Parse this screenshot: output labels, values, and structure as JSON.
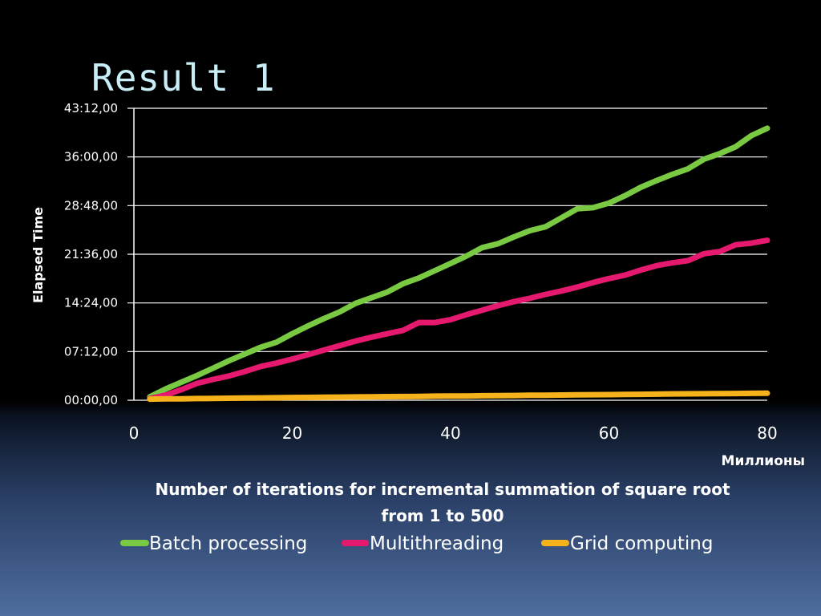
{
  "slide": {
    "title": "Result 1"
  },
  "chart_data": {
    "type": "line",
    "title": "",
    "ylabel": "Elapsed Time",
    "x_unit_label": "Миллионы",
    "xlabel_lines": [
      "Number of iterations for incremental summation of square root",
      "from 1 to 500"
    ],
    "xlim": [
      0,
      80
    ],
    "x_ticks": [
      0,
      20,
      40,
      60,
      80
    ],
    "x_tick_labels": [
      "0",
      "20",
      "40",
      "60",
      "80"
    ],
    "ylim_seconds": [
      0,
      2592
    ],
    "y_ticks_seconds": [
      0,
      432,
      864,
      1296,
      1728,
      2160,
      2592
    ],
    "y_tick_labels": [
      "00:00,00",
      "07:12,00",
      "14:24,00",
      "21:36,00",
      "28:48,00",
      "36:00,00",
      "43:12,00"
    ],
    "grid": true,
    "legend_position": "bottom",
    "x": [
      2,
      4,
      6,
      8,
      10,
      12,
      14,
      16,
      18,
      20,
      22,
      24,
      26,
      28,
      30,
      32,
      34,
      36,
      38,
      40,
      42,
      44,
      46,
      48,
      50,
      52,
      54,
      56,
      58,
      60,
      62,
      64,
      66,
      68,
      70,
      72,
      74,
      76,
      78,
      80
    ],
    "series": [
      {
        "name": "Batch processing",
        "color": "#7ac943",
        "values": [
          30,
          100,
          160,
          220,
          285,
          350,
          410,
          470,
          515,
          590,
          660,
          725,
          785,
          860,
          910,
          960,
          1035,
          1085,
          1150,
          1215,
          1280,
          1355,
          1390,
          1450,
          1505,
          1540,
          1620,
          1700,
          1710,
          1750,
          1815,
          1890,
          1950,
          2005,
          2055,
          2140,
          2190,
          2250,
          2350,
          2415
        ]
      },
      {
        "name": "Multithreading",
        "color": "#e5196e",
        "values": [
          15,
          45,
          95,
          150,
          185,
          215,
          255,
          300,
          330,
          365,
          405,
          445,
          485,
          525,
          560,
          590,
          620,
          690,
          690,
          715,
          760,
          800,
          840,
          875,
          905,
          940,
          970,
          1005,
          1045,
          1080,
          1110,
          1155,
          1195,
          1220,
          1240,
          1300,
          1320,
          1380,
          1395,
          1420
        ]
      },
      {
        "name": "Grid computing",
        "color": "#f5b21b",
        "values": [
          10,
          12,
          13,
          15,
          16,
          18,
          19,
          21,
          22,
          24,
          25,
          26,
          28,
          29,
          30,
          32,
          33,
          34,
          36,
          37,
          38,
          40,
          41,
          42,
          44,
          45,
          46,
          48,
          49,
          50,
          52,
          53,
          54,
          56,
          57,
          58,
          59,
          60,
          61,
          62
        ]
      }
    ]
  }
}
